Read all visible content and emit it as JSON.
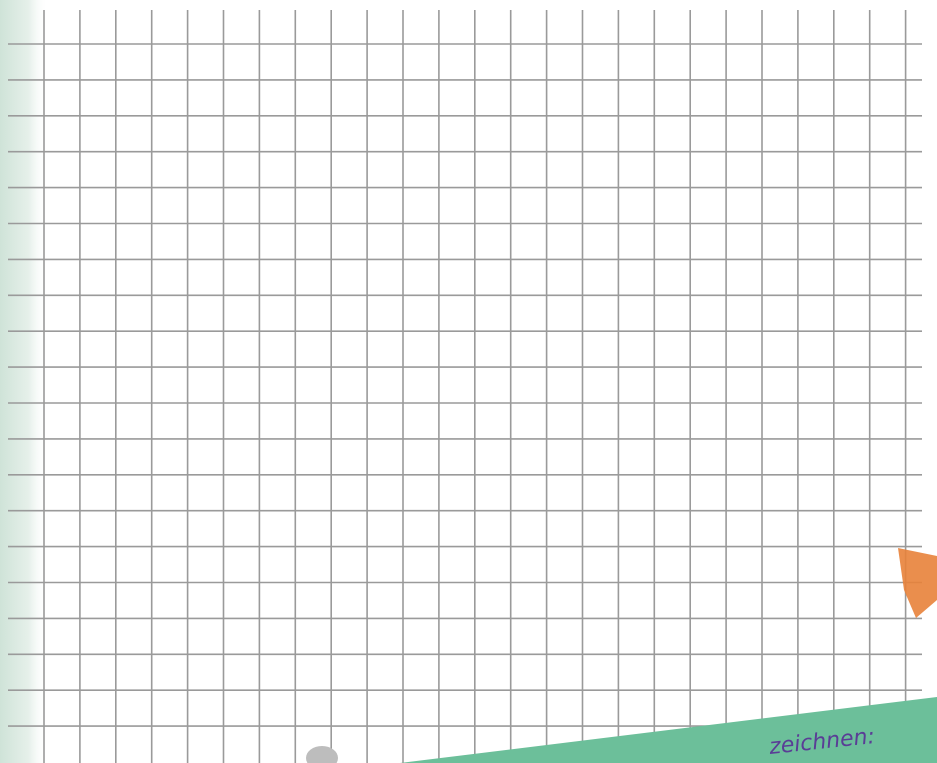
{
  "caption": "zeichnen:"
}
